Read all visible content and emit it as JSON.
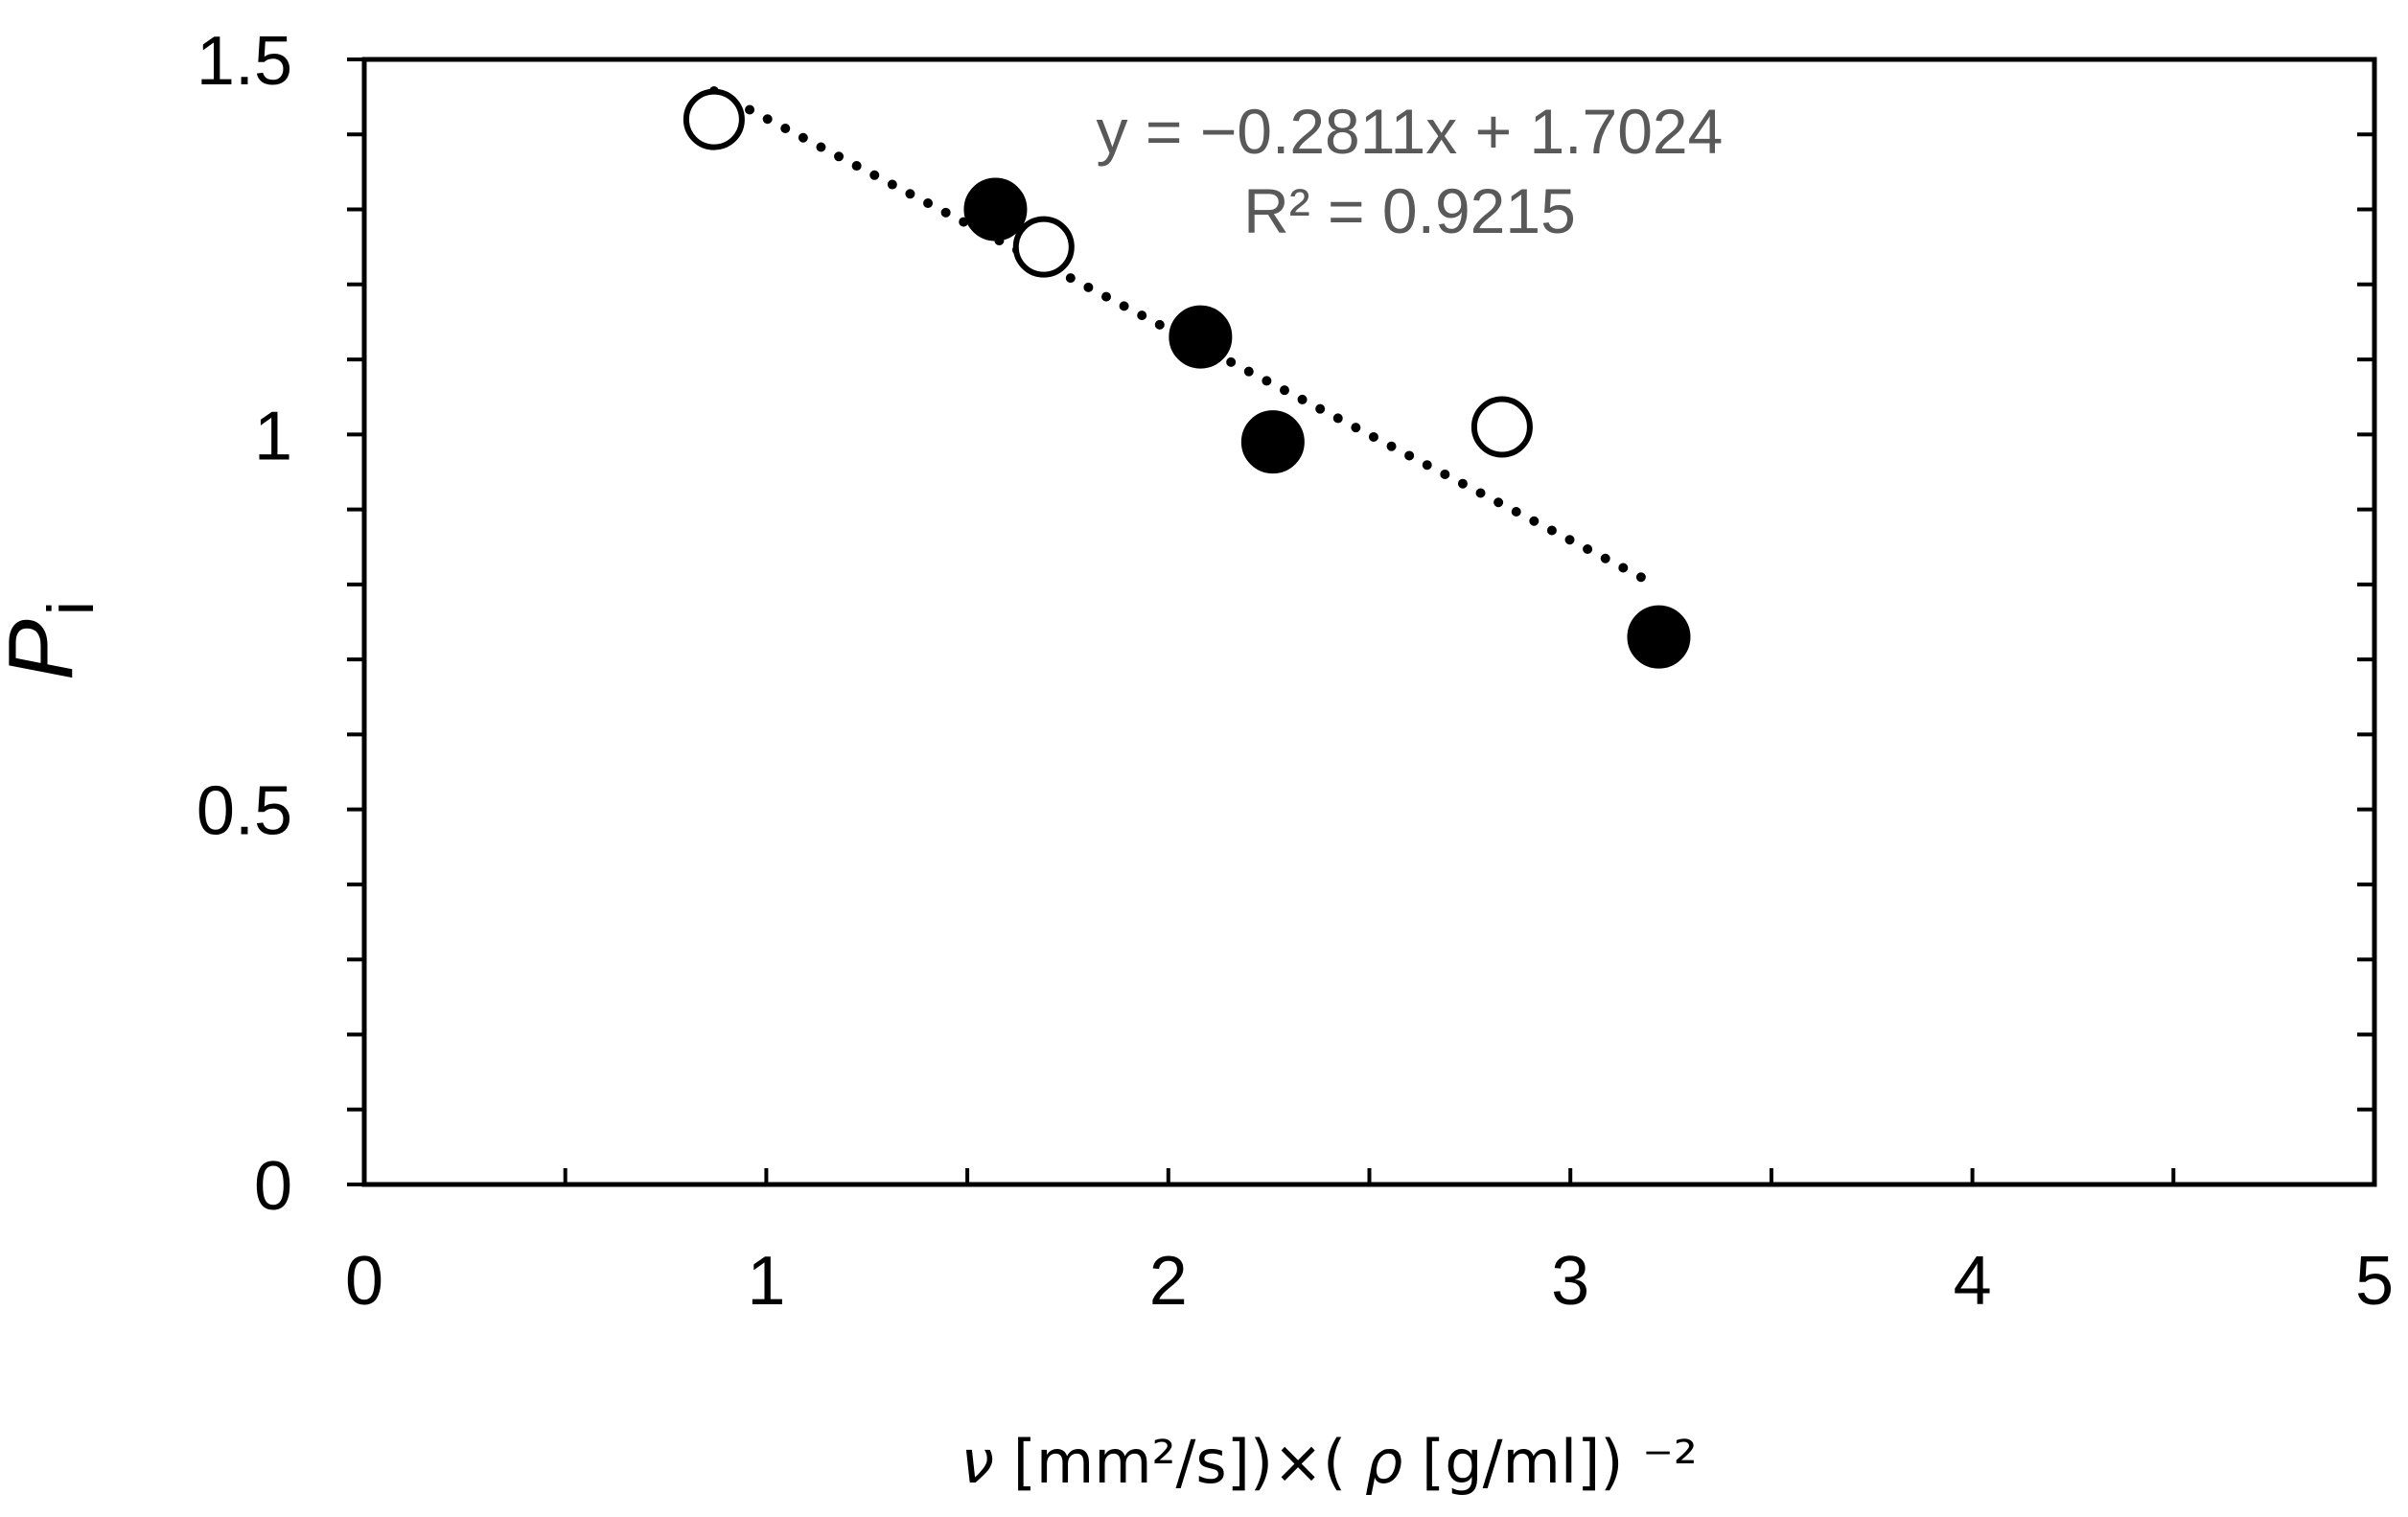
{
  "chart_data": {
    "type": "scatter",
    "x_axis": {
      "label_parts": [
        "ν",
        " [mm²/s])×(",
        "ρ",
        "[g/ml])",
        "⁻²"
      ],
      "range": [
        0,
        5
      ],
      "ticks": [
        0,
        1,
        2,
        3,
        4,
        5
      ],
      "tick_labels": [
        "0",
        "1",
        "2",
        "3",
        "4",
        "5"
      ],
      "minor_step": 0.5
    },
    "y_axis": {
      "label_main": "P",
      "label_sub": "i",
      "range": [
        0,
        1.5
      ],
      "ticks": [
        0,
        0.5,
        1,
        1.5
      ],
      "tick_labels": [
        "0",
        "0.5",
        "1",
        "1.5"
      ],
      "minor_step": 0.1
    },
    "series": [
      {
        "marker": "filled-circle",
        "color": "#000000",
        "points": [
          {
            "x": 1.57,
            "y": 1.3
          },
          {
            "x": 2.08,
            "y": 1.13
          },
          {
            "x": 2.26,
            "y": 0.99
          },
          {
            "x": 3.22,
            "y": 0.73
          }
        ]
      },
      {
        "marker": "open-circle",
        "color": "#000000",
        "points": [
          {
            "x": 0.87,
            "y": 1.42
          },
          {
            "x": 1.69,
            "y": 1.25
          },
          {
            "x": 2.83,
            "y": 1.01
          }
        ]
      }
    ],
    "trendline": {
      "style": "dotted",
      "color": "#000000",
      "slope": -0.2811,
      "intercept": 1.7024,
      "x_range": [
        0.87,
        3.22
      ],
      "equation_label": "y = −0.2811x + 1.7024",
      "r2_label": "R² = 0.9215",
      "label_color": "#595959"
    },
    "grid": false,
    "legend": "none"
  }
}
